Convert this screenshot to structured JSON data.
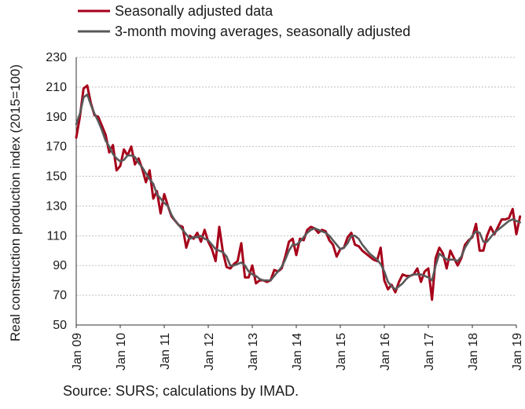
{
  "chart_data": {
    "type": "line",
    "ylabel": "Real construction production index (2015=100)",
    "ylim": [
      50,
      230
    ],
    "yticks": [
      50,
      70,
      90,
      110,
      130,
      150,
      170,
      190,
      210,
      230
    ],
    "xtick_labels": [
      "Jan 09",
      "Jan 10",
      "Jan 11",
      "Jan 12",
      "Jan 13",
      "Jan 14",
      "Jan 15",
      "Jan 16",
      "Jan 17",
      "Jan 18",
      "Jan 19"
    ],
    "grid": "horizontal",
    "legend_position": "top-left",
    "x_start": "Jan 2009",
    "x_frequency": "monthly",
    "series": [
      {
        "name": "Seasonally adjusted data",
        "color": "#a6001a",
        "values": [
          176,
          190,
          209,
          211,
          199,
          191,
          190,
          184,
          178,
          166,
          171,
          154,
          157,
          168,
          164,
          170,
          158,
          162,
          155,
          146,
          154,
          135,
          140,
          125,
          138,
          130,
          123,
          120,
          117,
          116,
          102,
          110,
          108,
          112,
          106,
          114,
          106,
          101,
          93,
          116,
          99,
          89,
          88,
          91,
          93,
          105,
          82,
          82,
          90,
          78,
          80,
          80,
          79,
          80,
          87,
          86,
          88,
          96,
          106,
          108,
          97,
          108,
          107,
          114,
          116,
          115,
          112,
          114,
          113,
          107,
          104,
          96,
          101,
          102,
          109,
          112,
          104,
          103,
          100,
          98,
          96,
          94,
          93,
          102,
          80,
          74,
          77,
          72,
          79,
          84,
          83,
          83,
          84,
          88,
          79,
          86,
          88,
          67,
          95,
          102,
          98,
          88,
          100,
          95,
          90,
          95,
          104,
          107,
          109,
          118,
          100,
          100,
          110,
          116,
          111,
          116,
          121,
          121,
          122,
          128,
          111,
          123
        ]
      },
      {
        "name": "3-month moving averages, seasonally adjusted",
        "color": "#595959",
        "values": [
          185,
          192,
          203,
          205,
          198,
          192,
          187,
          181,
          174,
          170,
          165,
          162,
          160,
          161,
          164,
          164,
          163,
          159,
          156,
          152,
          148,
          145,
          138,
          135,
          132,
          130,
          124,
          120,
          117,
          114,
          111,
          108,
          109,
          109,
          110,
          108,
          107,
          104,
          101,
          100,
          99,
          96,
          90,
          90,
          91,
          92,
          90,
          86,
          84,
          83,
          81,
          80,
          80,
          80,
          83,
          86,
          89,
          94,
          100,
          104,
          104,
          106,
          109,
          112,
          114,
          115,
          114,
          113,
          112,
          110,
          107,
          104,
          101,
          102,
          105,
          110,
          110,
          108,
          104,
          101,
          98,
          96,
          94,
          91,
          86,
          79,
          76,
          74,
          76,
          78,
          81,
          83,
          84,
          84,
          84,
          83,
          82,
          80,
          90,
          98,
          96,
          94,
          94,
          94,
          93,
          96,
          102,
          106,
          110,
          113,
          112,
          106,
          106,
          109,
          112,
          114,
          116,
          118,
          120,
          121,
          120,
          119
        ]
      }
    ]
  },
  "source": "Source: SURS; calculations by IMAD."
}
